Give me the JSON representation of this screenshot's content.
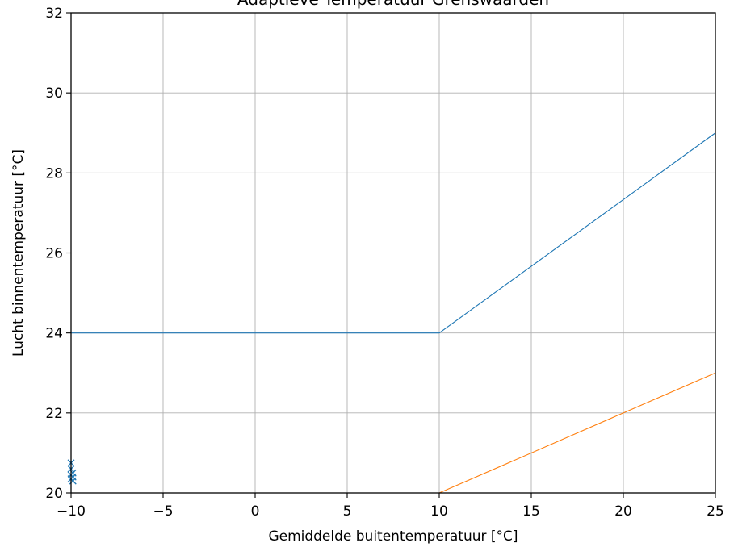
{
  "chart_data": {
    "type": "line",
    "title": "Adaptieve Temperatuur Grenswaarden",
    "xlabel": "Gemiddelde buitentemperatuur [°C]",
    "ylabel": "Lucht binnentemperatuur [°C]",
    "xlim": [
      -10,
      25
    ],
    "ylim": [
      20,
      32
    ],
    "xticks": [
      -10,
      -5,
      0,
      5,
      10,
      15,
      20,
      25
    ],
    "xtick_labels": [
      "−10",
      "−5",
      "0",
      "5",
      "10",
      "15",
      "20",
      "25"
    ],
    "yticks": [
      20,
      22,
      24,
      26,
      28,
      30,
      32
    ],
    "ytick_labels": [
      "20",
      "22",
      "24",
      "26",
      "28",
      "30",
      "32"
    ],
    "grid": true,
    "series": [
      {
        "style": "line",
        "color": "#1f77b4",
        "points": [
          [
            -10,
            24
          ],
          [
            10,
            24
          ],
          [
            25,
            29
          ]
        ]
      },
      {
        "style": "line",
        "color": "#ff7f0e",
        "points": [
          [
            10,
            20
          ],
          [
            25,
            23
          ]
        ]
      },
      {
        "style": "scatter",
        "marker": "x",
        "color": "#1f77b4",
        "points": [
          [
            -10,
            20.75
          ],
          [
            -10,
            20.6
          ],
          [
            -9.9,
            20.5
          ],
          [
            -10,
            20.45
          ],
          [
            -9.9,
            20.4
          ],
          [
            -10,
            20.35
          ],
          [
            -9.9,
            20.3
          ]
        ]
      }
    ]
  }
}
